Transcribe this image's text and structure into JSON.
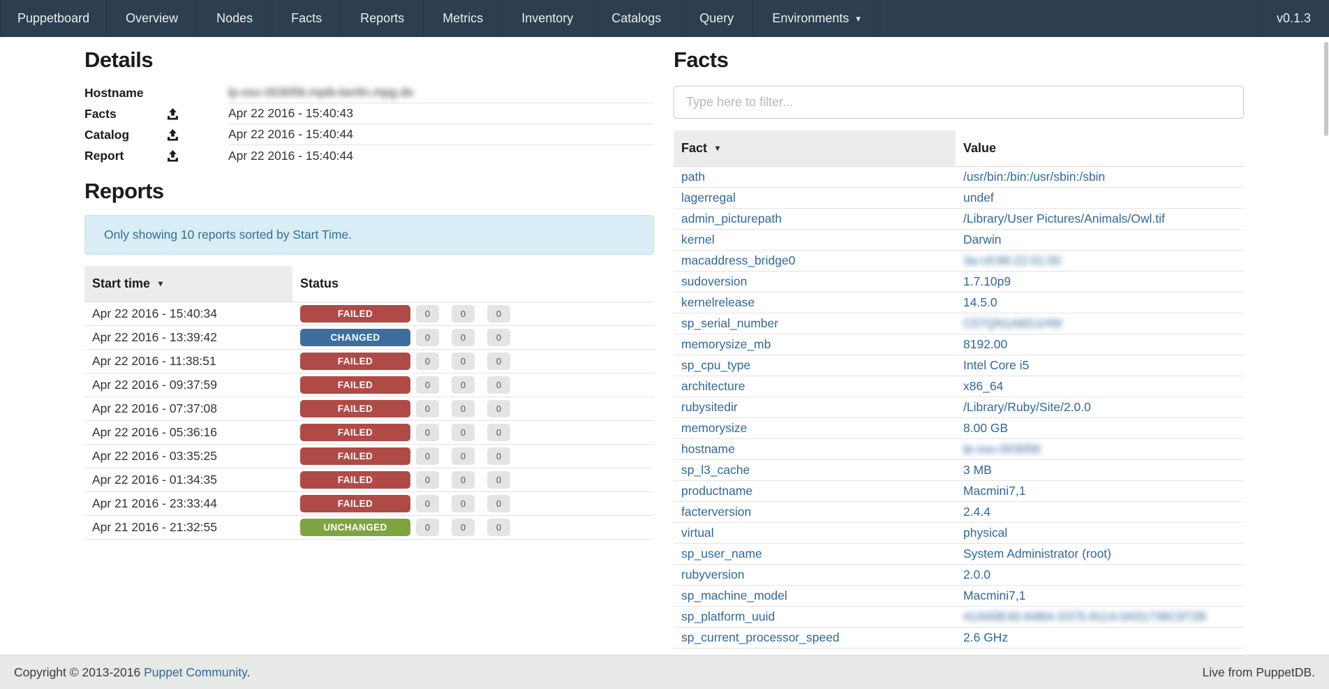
{
  "navbar": {
    "brand": "Puppetboard",
    "items": [
      "Overview",
      "Nodes",
      "Facts",
      "Reports",
      "Metrics",
      "Inventory",
      "Catalogs",
      "Query"
    ],
    "environments_label": "Environments",
    "version": "v0.1.3"
  },
  "details": {
    "title": "Details",
    "rows": [
      {
        "label": "Hostname",
        "has_icon": false,
        "value": "lp-osx-003056.mpib-berlin.mpg.de",
        "blurred": true
      },
      {
        "label": "Facts",
        "has_icon": true,
        "value": "Apr 22 2016 - 15:40:43",
        "blurred": false
      },
      {
        "label": "Catalog",
        "has_icon": true,
        "value": "Apr 22 2016 - 15:40:44",
        "blurred": false
      },
      {
        "label": "Report",
        "has_icon": true,
        "value": "Apr 22 2016 - 15:40:44",
        "blurred": false
      }
    ]
  },
  "reports": {
    "title": "Reports",
    "alert": "Only showing 10 reports sorted by Start Time.",
    "columns": [
      "Start time",
      "Status"
    ],
    "rows": [
      {
        "start_time": "Apr 22 2016 - 15:40:34",
        "status": "FAILED",
        "counts": [
          "0",
          "0",
          "0"
        ]
      },
      {
        "start_time": "Apr 22 2016 - 13:39:42",
        "status": "CHANGED",
        "counts": [
          "0",
          "0",
          "0"
        ]
      },
      {
        "start_time": "Apr 22 2016 - 11:38:51",
        "status": "FAILED",
        "counts": [
          "0",
          "0",
          "0"
        ]
      },
      {
        "start_time": "Apr 22 2016 - 09:37:59",
        "status": "FAILED",
        "counts": [
          "0",
          "0",
          "0"
        ]
      },
      {
        "start_time": "Apr 22 2016 - 07:37:08",
        "status": "FAILED",
        "counts": [
          "0",
          "0",
          "0"
        ]
      },
      {
        "start_time": "Apr 22 2016 - 05:36:16",
        "status": "FAILED",
        "counts": [
          "0",
          "0",
          "0"
        ]
      },
      {
        "start_time": "Apr 22 2016 - 03:35:25",
        "status": "FAILED",
        "counts": [
          "0",
          "0",
          "0"
        ]
      },
      {
        "start_time": "Apr 22 2016 - 01:34:35",
        "status": "FAILED",
        "counts": [
          "0",
          "0",
          "0"
        ]
      },
      {
        "start_time": "Apr 21 2016 - 23:33:44",
        "status": "FAILED",
        "counts": [
          "0",
          "0",
          "0"
        ]
      },
      {
        "start_time": "Apr 21 2016 - 21:32:55",
        "status": "UNCHANGED",
        "counts": [
          "0",
          "0",
          "0"
        ]
      }
    ]
  },
  "facts": {
    "title": "Facts",
    "filter_placeholder": "Type here to filter...",
    "columns": [
      "Fact",
      "Value"
    ],
    "rows": [
      {
        "fact": "path",
        "value": "/usr/bin:/bin:/usr/sbin:/sbin",
        "blurred": false
      },
      {
        "fact": "lagerregal",
        "value": "undef",
        "blurred": false
      },
      {
        "fact": "admin_picturepath",
        "value": "/Library/User Pictures/Animals/Owl.tif",
        "blurred": false
      },
      {
        "fact": "kernel",
        "value": "Darwin",
        "blurred": false
      },
      {
        "fact": "macaddress_bridge0",
        "value": "3a:c9:88:22:01:00",
        "blurred": true
      },
      {
        "fact": "sudoversion",
        "value": "1.7.10p9",
        "blurred": false
      },
      {
        "fact": "kernelrelease",
        "value": "14.5.0",
        "blurred": false
      },
      {
        "fact": "sp_serial_number",
        "value": "C07QN1A6G1HW",
        "blurred": true
      },
      {
        "fact": "memorysize_mb",
        "value": "8192.00",
        "blurred": false
      },
      {
        "fact": "sp_cpu_type",
        "value": "Intel Core i5",
        "blurred": false
      },
      {
        "fact": "architecture",
        "value": "x86_64",
        "blurred": false
      },
      {
        "fact": "rubysitedir",
        "value": "/Library/Ruby/Site/2.0.0",
        "blurred": false
      },
      {
        "fact": "memorysize",
        "value": "8.00 GB",
        "blurred": false
      },
      {
        "fact": "hostname",
        "value": "lp-osx-003056",
        "blurred": true
      },
      {
        "fact": "sp_l3_cache",
        "value": "3 MB",
        "blurred": false
      },
      {
        "fact": "productname",
        "value": "Macmini7,1",
        "blurred": false
      },
      {
        "fact": "facterversion",
        "value": "2.4.4",
        "blurred": false
      },
      {
        "fact": "virtual",
        "value": "physical",
        "blurred": false
      },
      {
        "fact": "sp_user_name",
        "value": "System Administrator (root)",
        "blurred": false
      },
      {
        "fact": "rubyversion",
        "value": "2.0.0",
        "blurred": false
      },
      {
        "fact": "sp_machine_model",
        "value": "Macmini7,1",
        "blurred": false
      },
      {
        "fact": "sp_platform_uuid",
        "value": "41A00E40-64BA-5375-8114-0A51736C872B",
        "blurred": true
      },
      {
        "fact": "sp_current_processor_speed",
        "value": "2.6 GHz",
        "blurred": false
      }
    ]
  },
  "footer": {
    "copyright_prefix": "Copyright © 2013-2016 ",
    "copyright_link": "Puppet Community",
    "copyright_suffix": ".",
    "status": "Live from PuppetDB."
  },
  "colors": {
    "navbar_bg": "#2d3e50",
    "link": "#31679b",
    "alert_bg": "#d9edf7",
    "alert_text": "#31708f",
    "status": {
      "FAILED": "#b04a47",
      "CHANGED": "#3e6e9e",
      "UNCHANGED": "#7ea440"
    },
    "count_badge_bg": "#e4e4e4"
  }
}
